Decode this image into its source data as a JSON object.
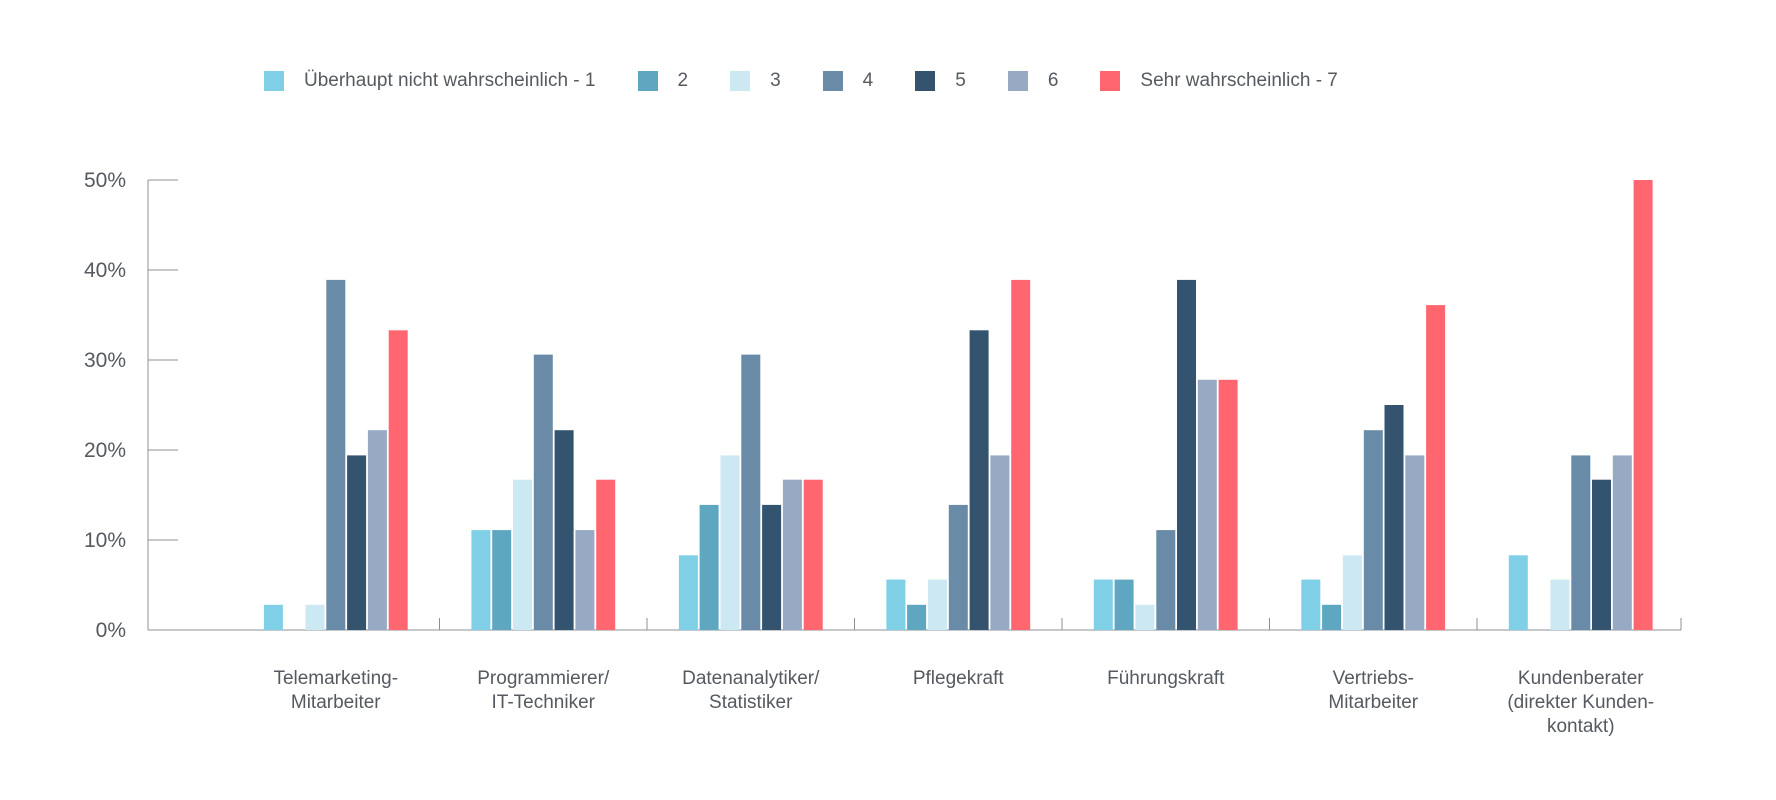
{
  "chart_data": {
    "type": "bar",
    "title": "",
    "xlabel": "",
    "ylabel": "",
    "ylim": [
      0,
      50
    ],
    "yticks": [
      0,
      10,
      20,
      30,
      40,
      50
    ],
    "ytick_labels": [
      "0%",
      "10%",
      "20%",
      "30%",
      "40%",
      "50%"
    ],
    "grid": false,
    "legend_position": "top",
    "categories": [
      [
        "Telemarketing-",
        "Mitarbeiter"
      ],
      [
        "Programmierer/",
        "IT-Techniker"
      ],
      [
        "Datenanalytiker/",
        "Statistiker"
      ],
      [
        "Pflegekraft"
      ],
      [
        "Führungskraft"
      ],
      [
        "Vertriebs-",
        "Mitarbeiter"
      ],
      [
        "Kundenberater",
        "(direkter Kunden-",
        "kontakt)"
      ]
    ],
    "series": [
      {
        "name": "Überhaupt nicht wahrscheinlich - 1",
        "color": "#7fd0e6",
        "values": [
          2.8,
          11.1,
          8.3,
          5.6,
          5.6,
          5.6,
          8.3
        ]
      },
      {
        "name": "2",
        "color": "#5fa7c1",
        "values": [
          0,
          11.1,
          13.9,
          2.8,
          5.6,
          2.8,
          0
        ]
      },
      {
        "name": "3",
        "color": "#cce8f3",
        "values": [
          2.8,
          16.7,
          19.4,
          5.6,
          2.8,
          8.3,
          5.6
        ]
      },
      {
        "name": "4",
        "color": "#6a8ba8",
        "values": [
          38.9,
          30.6,
          30.6,
          13.9,
          11.1,
          22.2,
          19.4
        ]
      },
      {
        "name": "5",
        "color": "#34536e",
        "values": [
          19.4,
          22.2,
          13.9,
          33.3,
          38.9,
          25.0,
          16.7
        ]
      },
      {
        "name": "6",
        "color": "#98a9c4",
        "values": [
          22.2,
          11.1,
          16.7,
          19.4,
          27.8,
          19.4,
          19.4
        ]
      },
      {
        "name": "Sehr wahrscheinlich - 7",
        "color": "#ff6670",
        "values": [
          33.3,
          16.7,
          16.7,
          38.9,
          27.8,
          36.1,
          50.0
        ]
      }
    ]
  }
}
